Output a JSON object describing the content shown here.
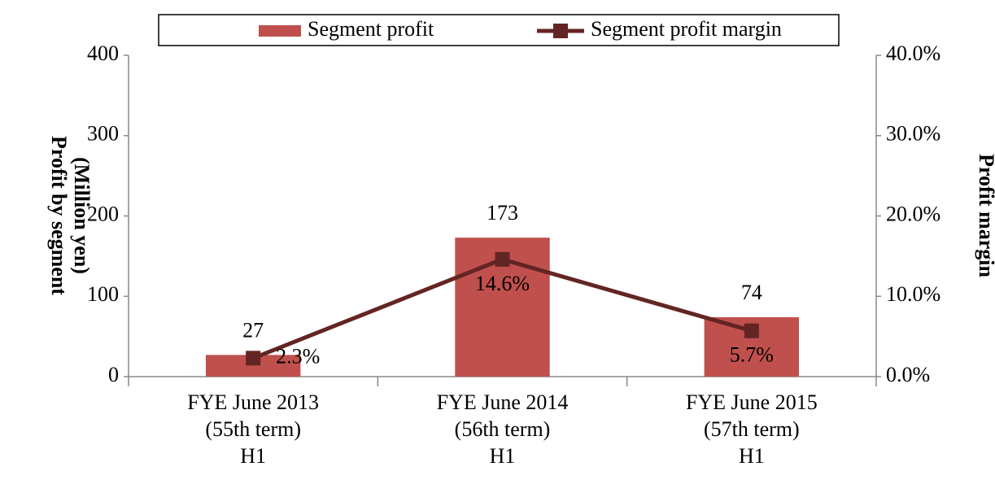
{
  "chart_data": {
    "type": "bar_line",
    "categories": [
      [
        "FYE June 2013",
        "(55th term)",
        "H1"
      ],
      [
        "FYE June 2014",
        "(56th term)",
        "H1"
      ],
      [
        "FYE June 2015",
        "(57th term)",
        "H1"
      ]
    ],
    "series": [
      {
        "name": "Segment profit",
        "type": "bar",
        "color": "#c0504d",
        "values": [
          27,
          173,
          74
        ]
      },
      {
        "name": "Segment profit margin",
        "type": "line",
        "axis": "y2",
        "color": "#632523",
        "values": [
          2.3,
          14.6,
          5.7
        ],
        "value_labels": [
          "2.3%",
          "14.6%",
          "5.7%"
        ]
      }
    ],
    "y_label": [
      "Profit by segment",
      "(Million yen)"
    ],
    "y2_label": "Profit margin",
    "ylim": [
      0,
      400
    ],
    "yticks": [
      0,
      100,
      200,
      300,
      400
    ],
    "y2lim": [
      0,
      40
    ],
    "y2ticks": [
      {
        "value": 0,
        "label": "0.0%"
      },
      {
        "value": 10,
        "label": "10.0%"
      },
      {
        "value": 20,
        "label": "20.0%"
      },
      {
        "value": 30,
        "label": "30.0%"
      },
      {
        "value": 40,
        "label": "40.0%"
      }
    ],
    "legend": "top",
    "grid": false
  }
}
